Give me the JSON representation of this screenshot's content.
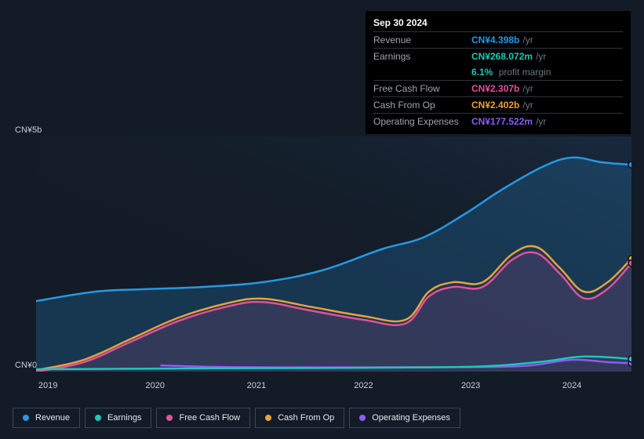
{
  "background_color": "#131b26",
  "tooltip": {
    "date": "Sep 30 2024",
    "rows": [
      {
        "label": "Revenue",
        "value": "CN¥4.398b",
        "unit": "/yr",
        "color": "#2798e4",
        "extra": null
      },
      {
        "label": "Earnings",
        "value": "CN¥268.072m",
        "unit": "/yr",
        "color": "#1fc7b6",
        "extra": {
          "pct": "6.1%",
          "txt": "profit margin"
        }
      },
      {
        "label": "Free Cash Flow",
        "value": "CN¥2.307b",
        "unit": "/yr",
        "color": "#e4509b",
        "extra": null
      },
      {
        "label": "Cash From Op",
        "value": "CN¥2.402b",
        "unit": "/yr",
        "color": "#e8a23c",
        "extra": null
      },
      {
        "label": "Operating Expenses",
        "value": "CN¥177.522m",
        "unit": "/yr",
        "color": "#8b5cf6",
        "extra": null
      }
    ]
  },
  "chart": {
    "type": "area",
    "y_axis": {
      "top_label": "CN¥5b",
      "bottom_label": "CN¥0",
      "min": 0,
      "max": 5000
    },
    "x_axis": {
      "ticks": [
        "2019",
        "2020",
        "2021",
        "2022",
        "2023",
        "2024"
      ],
      "positions_pct": [
        2,
        20,
        37,
        55,
        73,
        90
      ]
    },
    "plot_bg_gradient": {
      "from": "#1d3550",
      "to": "#131b26"
    },
    "series": [
      {
        "id": "revenue",
        "label": "Revenue",
        "color": "#2798e4",
        "fill": true,
        "fill_opacity": 0.22,
        "points": [
          [
            0,
            1500
          ],
          [
            10,
            1700
          ],
          [
            18,
            1750
          ],
          [
            28,
            1800
          ],
          [
            38,
            1900
          ],
          [
            48,
            2150
          ],
          [
            58,
            2600
          ],
          [
            65,
            2850
          ],
          [
            72,
            3350
          ],
          [
            78,
            3850
          ],
          [
            85,
            4350
          ],
          [
            90,
            4550
          ],
          [
            95,
            4450
          ],
          [
            100,
            4398
          ]
        ],
        "end_marker": true
      },
      {
        "id": "cash_from_op",
        "label": "Cash From Op",
        "color": "#e8a23c",
        "fill": false,
        "points": [
          [
            0,
            30
          ],
          [
            8,
            250
          ],
          [
            16,
            700
          ],
          [
            24,
            1150
          ],
          [
            32,
            1450
          ],
          [
            38,
            1550
          ],
          [
            46,
            1380
          ],
          [
            55,
            1180
          ],
          [
            62,
            1100
          ],
          [
            66,
            1700
          ],
          [
            70,
            1900
          ],
          [
            75,
            1900
          ],
          [
            80,
            2500
          ],
          [
            84,
            2650
          ],
          [
            88,
            2200
          ],
          [
            92,
            1700
          ],
          [
            96,
            1900
          ],
          [
            100,
            2402
          ]
        ],
        "end_marker": true
      },
      {
        "id": "free_cash_flow",
        "label": "Free Cash Flow",
        "color": "#e4509b",
        "fill": true,
        "fill_opacity": 0.14,
        "points": [
          [
            0,
            0
          ],
          [
            8,
            200
          ],
          [
            16,
            640
          ],
          [
            24,
            1080
          ],
          [
            32,
            1380
          ],
          [
            38,
            1480
          ],
          [
            46,
            1300
          ],
          [
            55,
            1100
          ],
          [
            62,
            1020
          ],
          [
            66,
            1600
          ],
          [
            70,
            1800
          ],
          [
            75,
            1800
          ],
          [
            80,
            2380
          ],
          [
            84,
            2520
          ],
          [
            88,
            2080
          ],
          [
            92,
            1560
          ],
          [
            96,
            1760
          ],
          [
            100,
            2307
          ]
        ],
        "end_marker": true
      },
      {
        "id": "operating_expenses",
        "label": "Operating Expenses",
        "color": "#8b5cf6",
        "fill": false,
        "points": [
          [
            21,
            130
          ],
          [
            30,
            100
          ],
          [
            40,
            90
          ],
          [
            55,
            90
          ],
          [
            70,
            95
          ],
          [
            82,
            120
          ],
          [
            90,
            250
          ],
          [
            96,
            200
          ],
          [
            100,
            178
          ]
        ],
        "end_marker": true
      },
      {
        "id": "earnings",
        "label": "Earnings",
        "color": "#1fc7b6",
        "fill": false,
        "points": [
          [
            0,
            50
          ],
          [
            15,
            60
          ],
          [
            30,
            70
          ],
          [
            45,
            75
          ],
          [
            60,
            85
          ],
          [
            75,
            110
          ],
          [
            85,
            210
          ],
          [
            92,
            320
          ],
          [
            100,
            268
          ]
        ],
        "end_marker": true
      }
    ],
    "legend_font_size": 11,
    "line_width": 2.5
  },
  "legend": [
    {
      "id": "revenue",
      "label": "Revenue",
      "color": "#2798e4"
    },
    {
      "id": "earnings",
      "label": "Earnings",
      "color": "#1fc7b6"
    },
    {
      "id": "free_cash_flow",
      "label": "Free Cash Flow",
      "color": "#e4509b"
    },
    {
      "id": "cash_from_op",
      "label": "Cash From Op",
      "color": "#e8a23c"
    },
    {
      "id": "operating_expenses",
      "label": "Operating Expenses",
      "color": "#8b5cf6"
    }
  ]
}
